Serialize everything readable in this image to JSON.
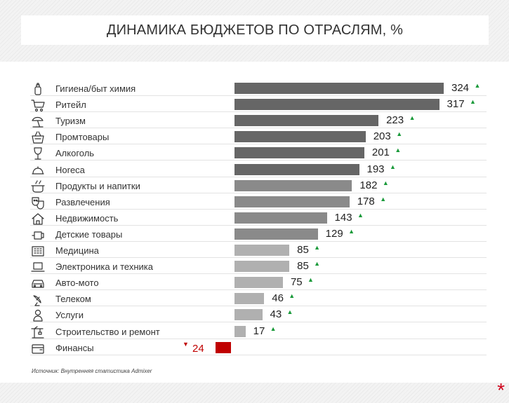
{
  "chart_data": {
    "type": "bar",
    "orientation": "horizontal",
    "title": "ДИНАМИКА БЮДЖЕТОВ ПО ОТРАСЛЯМ, %",
    "categories": [
      "Гигиена/быт химия",
      "Ритейл",
      "Туризм",
      "Промтовары",
      "Алкоголь",
      "Horeca",
      "Продукты и напитки",
      "Развлечения",
      "Недвижимость",
      "Детские товары",
      "Медицина",
      "Электроника и техника",
      "Авто-мото",
      "Телеком",
      "Услуги",
      "Строительство и ремонт",
      "Финансы"
    ],
    "values": [
      324,
      317,
      223,
      203,
      201,
      193,
      182,
      178,
      143,
      129,
      85,
      85,
      75,
      46,
      43,
      17,
      -24
    ],
    "value_labels": [
      "324",
      "317",
      "223",
      "203",
      "201",
      "193",
      "182",
      "178",
      "143",
      "129",
      "85",
      "85",
      "75",
      "46",
      "43",
      "17",
      "24"
    ],
    "trend": [
      "up",
      "up",
      "up",
      "up",
      "up",
      "up",
      "up",
      "up",
      "up",
      "up",
      "up",
      "up",
      "up",
      "up",
      "up",
      "up",
      "down"
    ],
    "icons": [
      "bottle-icon",
      "cart-icon",
      "beach-umbrella-icon",
      "basket-icon",
      "wine-glass-icon",
      "cloche-icon",
      "pot-icon",
      "theater-masks-icon",
      "house-icon",
      "baby-bottle-icon",
      "hospital-icon",
      "laptop-icon",
      "car-icon",
      "satellite-dish-icon",
      "person-icon",
      "crane-icon",
      "wallet-icon"
    ],
    "colors": {
      "up": "#1a9a3a",
      "down": "#c00000",
      "negative_bar": "#c00000",
      "bar_dark": "#666666",
      "bar_mid": "#8a8a8a",
      "bar_light": "#b0b0b0"
    }
  },
  "source": "Источник: Внутренняя статистика Admixer"
}
